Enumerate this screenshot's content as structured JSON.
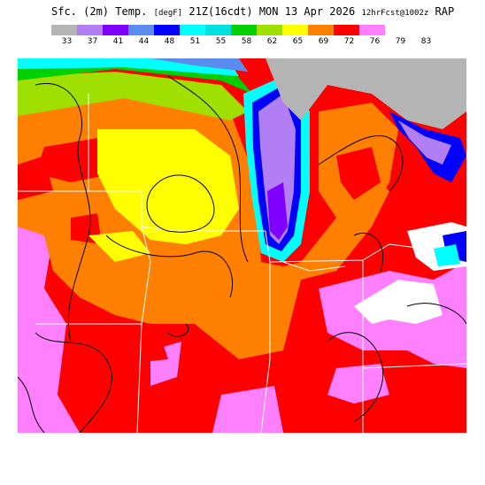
{
  "header": {
    "title_main": "Sfc. (2m) Temp.",
    "units": "[degF]",
    "valid": "21Z(16cdt) MON 13 Apr 2026",
    "forecast": "12hrFcst@1002z",
    "model": "RAP"
  },
  "legend": {
    "values": [
      "33",
      "37",
      "41",
      "44",
      "48",
      "51",
      "55",
      "58",
      "62",
      "65",
      "69",
      "72",
      "76",
      "79",
      "83"
    ],
    "colors": [
      "#b4b4b4",
      "#b27ef4",
      "#7f00ff",
      "#5a8cf0",
      "#0000ff",
      "#00ffff",
      "#00e0e0",
      "#00d000",
      "#a0e000",
      "#ffff00",
      "#ff8000",
      "#ff0000",
      "#ff80ff",
      "#ffffff"
    ]
  },
  "map": {
    "field": "surface temperature",
    "colors": {
      "gray": "#b4b4b4",
      "lavender": "#b27ef4",
      "purple": "#7f00ff",
      "blue": "#0000ff",
      "lightblue": "#5a8cf0",
      "cyan": "#00ffff",
      "green": "#00d000",
      "lightgreen": "#a0e000",
      "yellow": "#ffff00",
      "orange": "#ff8000",
      "red": "#ff0000",
      "pink": "#ff80ff",
      "white": "#ffffff"
    }
  }
}
